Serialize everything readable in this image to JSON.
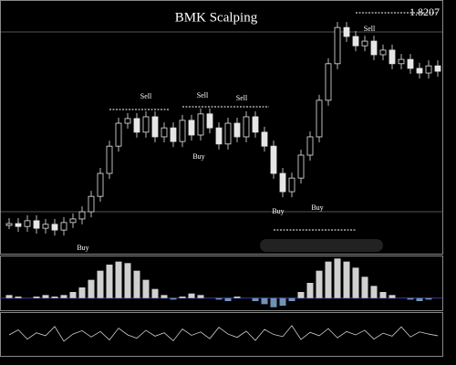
{
  "chart_data": [
    {
      "type": "candlestick",
      "title": "BMK Scalping",
      "price_label": "1.8207",
      "annotations": [
        "Sell",
        "Sell",
        "Sell",
        "Sell",
        "Buy",
        "Buy",
        "Buy",
        "Buy"
      ],
      "values": [
        1.7689,
        1.7681,
        1.7697,
        1.7676,
        1.7687,
        1.7671,
        1.7692,
        1.7702,
        1.7722,
        1.7765,
        1.7829,
        1.7905,
        1.7969,
        1.7982,
        1.7944,
        1.7987,
        1.7931,
        1.7956,
        1.7918,
        1.7977,
        1.7936,
        1.7995,
        1.7956,
        1.7911,
        1.7969,
        1.7931,
        1.7987,
        1.7944,
        1.7905,
        1.7829,
        1.7778,
        1.7816,
        1.788,
        1.7931,
        1.8033,
        1.8135,
        1.8236,
        1.8211,
        1.8185,
        1.8198,
        1.816,
        1.8173,
        1.8135,
        1.8147,
        1.8122,
        1.8109,
        1.8129,
        1.8114
      ],
      "color": "#e6e6e6",
      "ylim": [
        1.76,
        1.83
      ]
    },
    {
      "type": "histogram",
      "color": "#d0d0d0",
      "neg_color": "#6f93b5",
      "values": [
        0.1,
        0.05,
        0.0,
        0.05,
        0.1,
        0.05,
        0.1,
        0.2,
        0.35,
        0.6,
        0.9,
        1.1,
        1.2,
        1.15,
        0.9,
        0.6,
        0.3,
        0.1,
        -0.05,
        0.05,
        0.15,
        0.1,
        0.0,
        -0.05,
        -0.1,
        0.05,
        0.0,
        -0.1,
        -0.2,
        -0.3,
        -0.25,
        -0.1,
        0.2,
        0.5,
        0.9,
        1.2,
        1.3,
        1.2,
        1.0,
        0.7,
        0.4,
        0.2,
        0.1,
        0.0,
        -0.05,
        -0.1,
        -0.05,
        0.0
      ],
      "ylim": [
        -0.4,
        1.4
      ]
    },
    {
      "type": "line",
      "color": "#cfcfcf",
      "values": [
        50,
        62,
        40,
        55,
        48,
        70,
        35,
        52,
        60,
        45,
        58,
        38,
        66,
        50,
        42,
        61,
        47,
        55,
        36,
        64,
        49,
        57,
        41,
        68,
        52,
        44,
        59,
        37,
        63,
        51,
        46,
        72,
        39,
        56,
        48,
        65,
        43,
        58,
        50,
        61,
        40,
        54,
        47,
        69,
        45,
        57,
        52,
        48
      ],
      "ylim": [
        0,
        100
      ]
    }
  ]
}
